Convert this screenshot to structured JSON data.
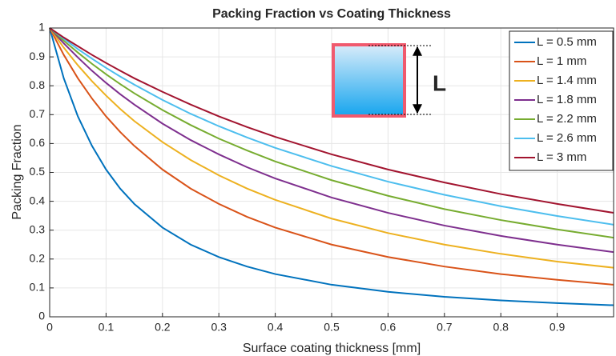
{
  "chart_data": {
    "type": "line",
    "title": "Packing Fraction vs Coating Thickness",
    "x_label": "Surface coating thickness [mm]",
    "y_label": "Packing Fraction",
    "annotation": "L",
    "x": [
      0,
      0.025,
      0.05,
      0.075,
      0.1,
      0.125,
      0.15,
      0.2,
      0.25,
      0.3,
      0.35,
      0.4,
      0.5,
      0.6,
      0.7,
      0.8,
      0.9,
      1
    ],
    "series": [
      {
        "name": "L = 0.5 mm",
        "color": "#0072BD",
        "values": [
          1,
          0.826,
          0.694,
          0.592,
          0.51,
          0.444,
          0.391,
          0.309,
          0.25,
          0.207,
          0.174,
          0.148,
          0.111,
          0.0865,
          0.0693,
          0.0567,
          0.0473,
          0.04
        ]
      },
      {
        "name": "L = 1 mm",
        "color": "#D95319",
        "values": [
          1,
          0.907,
          0.826,
          0.756,
          0.694,
          0.64,
          0.592,
          0.51,
          0.444,
          0.391,
          0.346,
          0.309,
          0.25,
          0.207,
          0.174,
          0.148,
          0.128,
          0.111
        ]
      },
      {
        "name": "L = 1.4 mm",
        "color": "#EDB120",
        "values": [
          1,
          0.932,
          0.871,
          0.816,
          0.766,
          0.72,
          0.678,
          0.605,
          0.543,
          0.49,
          0.444,
          0.405,
          0.34,
          0.29,
          0.25,
          0.218,
          0.191,
          0.17
        ]
      },
      {
        "name": "L = 1.8 mm",
        "color": "#7E2F8E",
        "values": [
          1,
          0.947,
          0.898,
          0.852,
          0.81,
          0.771,
          0.735,
          0.669,
          0.612,
          0.5625,
          0.518,
          0.479,
          0.413,
          0.36,
          0.316,
          0.28,
          0.25,
          0.224
        ]
      },
      {
        "name": "L = 2.2 mm",
        "color": "#77AC30",
        "values": [
          1,
          0.956,
          0.915,
          0.876,
          0.84,
          0.806,
          0.774,
          0.716,
          0.664,
          0.617,
          0.576,
          0.538,
          0.473,
          0.419,
          0.373,
          0.335,
          0.3025,
          0.274
        ]
      },
      {
        "name": "L = 2.6 mm",
        "color": "#4DBEEE",
        "values": [
          1,
          0.963,
          0.927,
          0.894,
          0.862,
          0.832,
          0.804,
          0.751,
          0.703,
          0.66,
          0.621,
          0.585,
          0.522,
          0.468,
          0.4225,
          0.383,
          0.349,
          0.319
        ]
      },
      {
        "name": "L = 3 mm",
        "color": "#A2142F",
        "values": [
          1,
          0.967,
          0.937,
          0.907,
          0.879,
          0.852,
          0.826,
          0.779,
          0.735,
          0.694,
          0.657,
          0.623,
          0.5625,
          0.51,
          0.465,
          0.425,
          0.391,
          0.36
        ]
      }
    ],
    "xlim": [
      0,
      1
    ],
    "xticks": [
      0,
      0.1,
      0.2,
      0.3,
      0.4,
      0.5,
      0.6,
      0.7,
      0.8,
      0.9
    ],
    "ylim": [
      0,
      1
    ],
    "yticks": [
      0,
      0.1,
      0.2,
      0.3,
      0.4,
      0.5,
      0.6,
      0.7,
      0.8,
      0.9,
      1
    ],
    "grid": true,
    "legend": "northeast"
  }
}
